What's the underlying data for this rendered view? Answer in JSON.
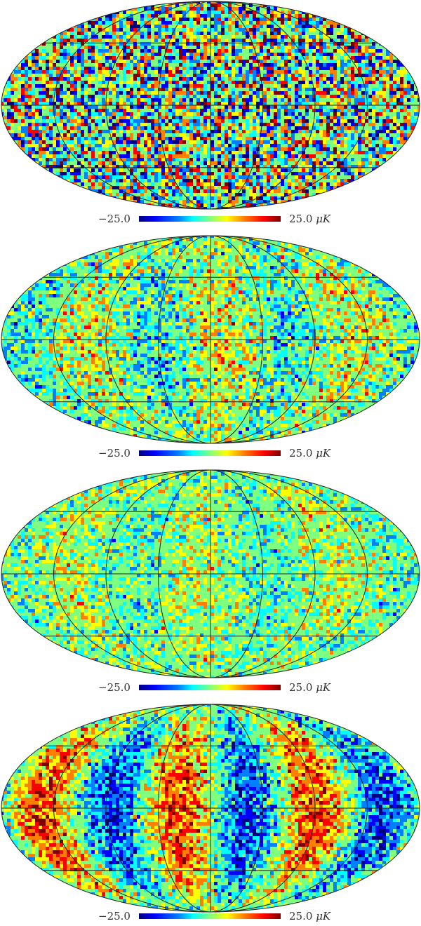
{
  "panels": [
    {
      "name": "map-1",
      "noise": "white",
      "colorbar": {
        "min_label": "−25.0",
        "max_label": "25.0",
        "unit": "μK"
      }
    },
    {
      "name": "map-2",
      "noise": "striped-low",
      "colorbar": {
        "min_label": "−25.0",
        "max_label": "25.0",
        "unit": "μK"
      }
    },
    {
      "name": "map-3",
      "noise": "striped-faint",
      "colorbar": {
        "min_label": "−25.0",
        "max_label": "25.0",
        "unit": "μK"
      }
    },
    {
      "name": "map-4",
      "noise": "striped-strong",
      "colorbar": {
        "min_label": "−25.0",
        "max_label": "25.0",
        "unit": "μK"
      }
    }
  ],
  "colormap": [
    "#00007f",
    "#0000ff",
    "#0080ff",
    "#00ffff",
    "#7fff7f",
    "#ffff00",
    "#ff8000",
    "#ff0000",
    "#7f0000"
  ],
  "projection": "mollweide"
}
